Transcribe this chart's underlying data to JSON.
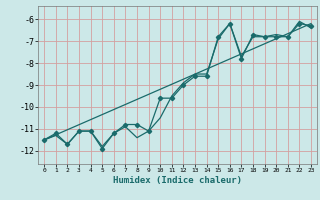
{
  "xlabel": "Humidex (Indice chaleur)",
  "bg_color": "#cce8e8",
  "grid_color": "#d4a0a0",
  "line_color": "#1a6b6b",
  "xlim": [
    -0.5,
    23.5
  ],
  "ylim": [
    -12.6,
    -5.4
  ],
  "yticks": [
    -12,
    -11,
    -10,
    -9,
    -8,
    -7,
    -6
  ],
  "xticks": [
    0,
    1,
    2,
    3,
    4,
    5,
    6,
    7,
    8,
    9,
    10,
    11,
    12,
    13,
    14,
    15,
    16,
    17,
    18,
    19,
    20,
    21,
    22,
    23
  ],
  "line1_x": [
    0,
    1,
    2,
    3,
    4,
    5,
    6,
    7,
    8,
    9,
    10,
    11,
    12,
    13,
    14,
    15,
    16,
    17,
    18,
    19,
    20,
    21,
    22,
    23
  ],
  "line1_y": [
    -11.5,
    -11.2,
    -11.7,
    -11.1,
    -11.1,
    -11.9,
    -11.2,
    -10.8,
    -10.8,
    -11.1,
    -9.6,
    -9.6,
    -9.0,
    -8.6,
    -8.6,
    -6.8,
    -6.2,
    -7.8,
    -6.7,
    -6.8,
    -6.8,
    -6.8,
    -6.2,
    -6.3
  ],
  "line2_x": [
    0,
    1,
    2,
    3,
    4,
    5,
    6,
    7,
    8,
    9,
    10,
    11,
    12,
    13,
    14,
    15,
    16,
    17,
    18,
    19,
    20,
    21,
    22,
    23
  ],
  "line2_y": [
    -11.5,
    -11.3,
    -11.7,
    -11.1,
    -11.1,
    -11.8,
    -11.2,
    -10.9,
    -11.4,
    -11.1,
    -10.5,
    -9.5,
    -8.9,
    -8.5,
    -8.5,
    -6.9,
    -6.2,
    -7.7,
    -6.8,
    -6.8,
    -6.7,
    -6.8,
    -6.1,
    -6.4
  ],
  "line3_x": [
    0,
    23
  ],
  "line3_y": [
    -11.5,
    -6.2
  ]
}
